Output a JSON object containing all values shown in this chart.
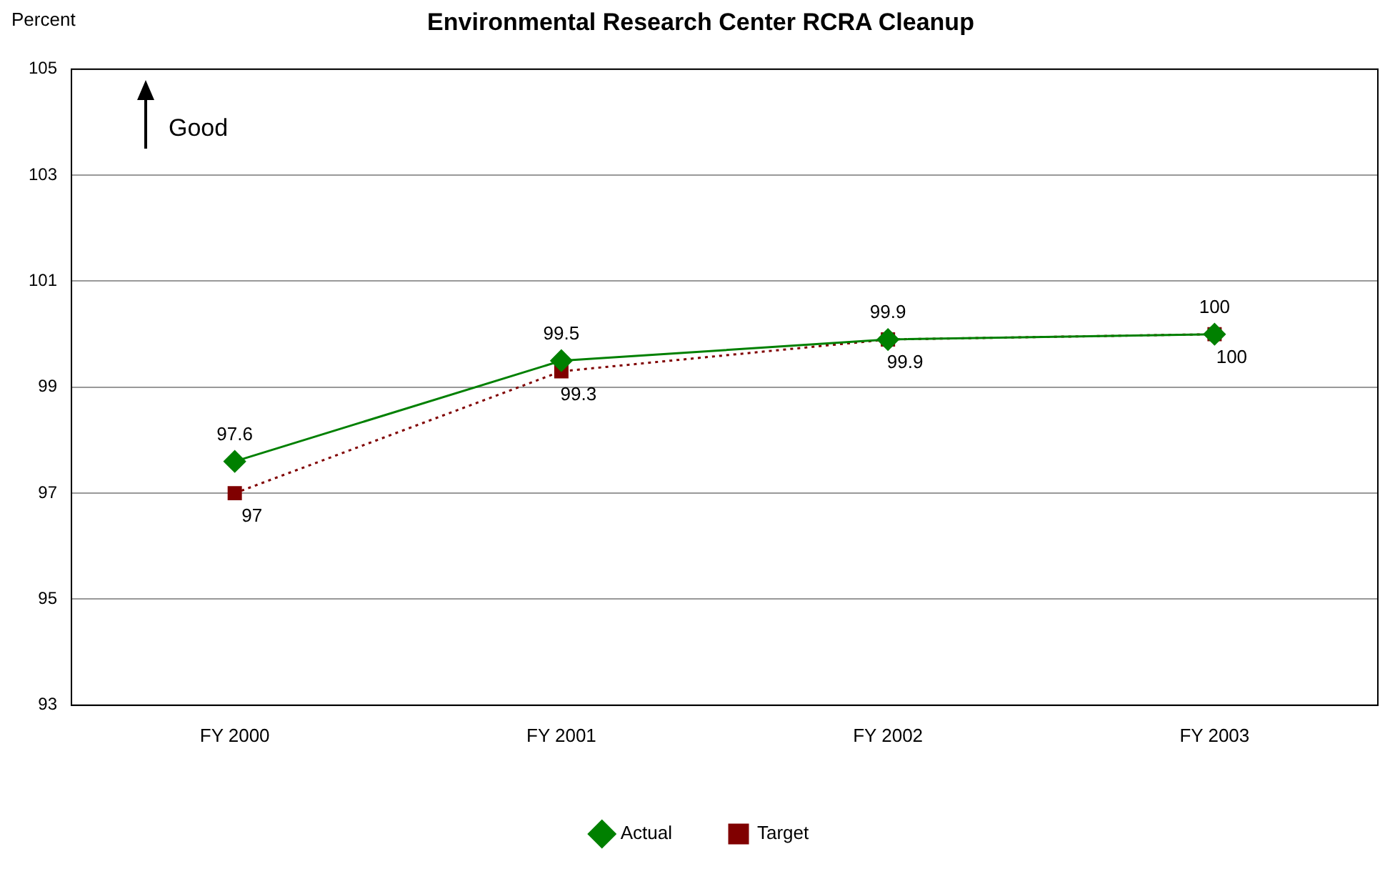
{
  "chart_data": {
    "type": "line",
    "title": "Environmental Research Center RCRA Cleanup",
    "ylabel": "Percent",
    "categories": [
      "FY 2000",
      "FY 2001",
      "FY 2002",
      "FY 2003"
    ],
    "series": [
      {
        "name": "Actual",
        "color": "#008000",
        "values": [
          97.6,
          99.5,
          99.9,
          100
        ],
        "marker": "diamond",
        "line_style": "solid"
      },
      {
        "name": "Target",
        "color": "#800000",
        "values": [
          97,
          99.3,
          99.9,
          100
        ],
        "marker": "square",
        "line_style": "dotted"
      }
    ],
    "ylim": [
      93,
      105
    ],
    "yticks": [
      93,
      95,
      97,
      99,
      101,
      103,
      105
    ],
    "grid": "y",
    "legend": "bottom",
    "data_labels": true,
    "annotations": [
      "Good"
    ]
  }
}
